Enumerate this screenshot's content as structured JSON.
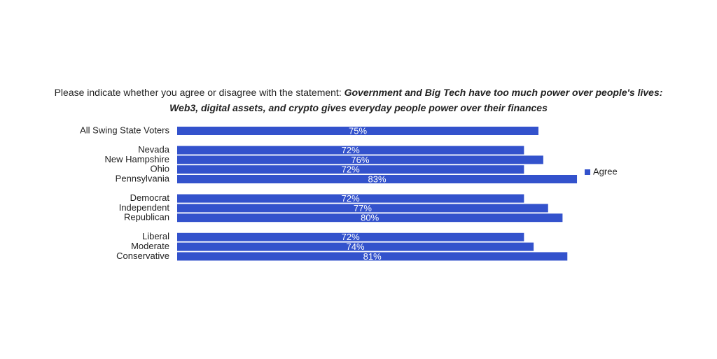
{
  "chart_data": {
    "type": "bar",
    "orientation": "horizontal",
    "title": "Please indicate whether you agree or disagree with the statement:",
    "title_emphasis": "Government and Big Tech have too much power over people's lives: Web3, digital assets, and crypto gives everyday people power over their finances",
    "categories": [
      "All Swing State Voters",
      null,
      "Nevada",
      "New Hampshire",
      "Ohio",
      "Pennsylvania",
      null,
      "Democrat",
      "Independent",
      "Republican",
      null,
      "Liberal",
      "Moderate",
      "Conservative"
    ],
    "series": [
      {
        "name": "Agree",
        "color": "#3352cc",
        "values": [
          75,
          null,
          72,
          76,
          72,
          83,
          null,
          72,
          77,
          80,
          null,
          72,
          74,
          81
        ],
        "value_labels": [
          "75%",
          null,
          "72%",
          "76%",
          "72%",
          "83%",
          null,
          "72%",
          "77%",
          "80%",
          null,
          "72%",
          "74%",
          "81%"
        ]
      }
    ],
    "xlim": [
      0,
      100
    ],
    "legend": "right"
  }
}
